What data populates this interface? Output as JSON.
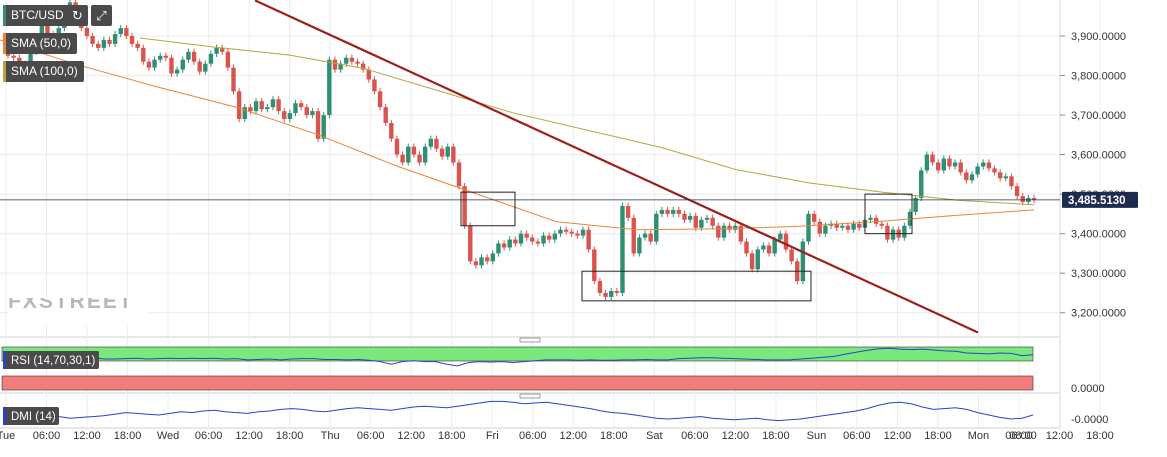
{
  "header": {
    "symbol": "BTC/USD",
    "indicators": [
      "SMA (50,0)",
      "SMA (100,0)"
    ],
    "refresh_icon": "refresh-icon",
    "fullscreen_icon": "expand-icon"
  },
  "watermark": "FXSTREET",
  "colors": {
    "bull": "#2f8f75",
    "bear": "#d9534f",
    "sma50": "#e8853a",
    "sma100": "#b5a642",
    "trend": "#9b1f1a",
    "rsi": "#2f3fc9",
    "rsi_upper": "#7be87b",
    "rsi_lower": "#f27d7d"
  },
  "chart_data": [
    {
      "type": "candlestick",
      "title": "BTC/USD",
      "x_tick_labels": [
        "Tue",
        "06:00",
        "12:00",
        "18:00",
        "Wed",
        "06:00",
        "12:00",
        "18:00",
        "Thu",
        "06:00",
        "12:00",
        "18:00",
        "Fri",
        "06:00",
        "12:00",
        "18:00",
        "Sat",
        "06:00",
        "12:00",
        "18:00",
        "Sun",
        "06:00",
        "12:00",
        "18:00",
        "Mon",
        "06:00",
        "12:00",
        "18:00",
        "08:00"
      ],
      "y_tick_labels": [
        "3,900.0000",
        "3,800.0000",
        "3,700.0000",
        "3,600.0000",
        "3,500.0000",
        "3,400.0000",
        "3,300.0000",
        "3,200.0000"
      ],
      "ylim": [
        3140,
        3990
      ],
      "current_price": 3485.513,
      "current_price_label": "3,485.5130",
      "series": [
        {
          "name": "BTC/USD",
          "close": [
            3850,
            3845,
            3830,
            3815,
            3860,
            3895,
            3950,
            3905,
            3890,
            3920,
            3960,
            3985,
            3945,
            3920,
            3900,
            3880,
            3870,
            3890,
            3880,
            3905,
            3920,
            3900,
            3880,
            3870,
            3835,
            3820,
            3840,
            3850,
            3845,
            3805,
            3815,
            3840,
            3860,
            3835,
            3810,
            3830,
            3855,
            3870,
            3860,
            3820,
            3760,
            3690,
            3720,
            3710,
            3735,
            3715,
            3720,
            3740,
            3710,
            3690,
            3705,
            3730,
            3720,
            3700,
            3710,
            3640,
            3700,
            3840,
            3815,
            3830,
            3845,
            3835,
            3830,
            3815,
            3790,
            3760,
            3720,
            3680,
            3640,
            3600,
            3580,
            3620,
            3600,
            3580,
            3620,
            3640,
            3615,
            3595,
            3620,
            3580,
            3520,
            3420,
            3330,
            3320,
            3340,
            3330,
            3350,
            3375,
            3365,
            3385,
            3375,
            3400,
            3390,
            3380,
            3375,
            3395,
            3385,
            3400,
            3410,
            3405,
            3400,
            3395,
            3410,
            3360,
            3280,
            3250,
            3240,
            3255,
            3250,
            3470,
            3440,
            3350,
            3390,
            3400,
            3380,
            3450,
            3460,
            3450,
            3460,
            3450,
            3435,
            3445,
            3415,
            3435,
            3440,
            3420,
            3390,
            3420,
            3410,
            3420,
            3380,
            3350,
            3310,
            3360,
            3370,
            3350,
            3385,
            3400,
            3360,
            3330,
            3280,
            3380,
            3450,
            3430,
            3400,
            3420,
            3425,
            3415,
            3420,
            3410,
            3425,
            3415,
            3435,
            3440,
            3425,
            3420,
            3385,
            3410,
            3390,
            3420,
            3455,
            3490,
            3560,
            3600,
            3580,
            3560,
            3590,
            3570,
            3580,
            3555,
            3535,
            3550,
            3570,
            3580,
            3565,
            3555,
            3540,
            3545,
            3520,
            3495,
            3480,
            3490,
            3485
          ]
        },
        {
          "name": "SMA (50,0)",
          "values": [
            3890,
            3826,
            3770,
            3718,
            3650,
            3570,
            3500,
            3430,
            3410,
            3412,
            3418,
            3430,
            3446,
            3460
          ]
        },
        {
          "name": "SMA (100,0)",
          "values": [
            3895,
            3872,
            3852,
            3818,
            3762,
            3706,
            3662,
            3618,
            3562,
            3528,
            3504,
            3484,
            3473
          ]
        },
        {
          "name": "trend",
          "values": [
            3990,
            3150
          ]
        }
      ]
    },
    {
      "type": "line",
      "title": "RSI (14,70,30,1)",
      "y_tick_labels": [
        "0.0000"
      ],
      "series": [
        {
          "name": "RSI (14,70,30,1)",
          "values": [
            70,
            78,
            80,
            74,
            78,
            74,
            72,
            73,
            76,
            72,
            72,
            73,
            74,
            72,
            73,
            74,
            73,
            74,
            73,
            74,
            72,
            73,
            70,
            71,
            72,
            70,
            72,
            73,
            73,
            71,
            71,
            70,
            71,
            69,
            66,
            60,
            66,
            68,
            66,
            66,
            60,
            56,
            64,
            66,
            65,
            66,
            64,
            66,
            68,
            70,
            70,
            70,
            69,
            70,
            69,
            69,
            70,
            70,
            71,
            70,
            70,
            73,
            74,
            75,
            75,
            74,
            73,
            72,
            71,
            70,
            70,
            70,
            72,
            74,
            76,
            78,
            83,
            88,
            92,
            96,
            97,
            95,
            94,
            95,
            93,
            91,
            90,
            86,
            85,
            84,
            86,
            85,
            80,
            82
          ]
        }
      ]
    },
    {
      "type": "line",
      "title": "DMI (14)",
      "y_tick_labels": [
        "-0.0000"
      ],
      "series": [
        {
          "name": "DMI (14)",
          "values": [
            12,
            14,
            16,
            18,
            20,
            16,
            12,
            14,
            16,
            18,
            22,
            26,
            24,
            22,
            20,
            24,
            28,
            26,
            30,
            32,
            28,
            26,
            24,
            28,
            30,
            34,
            36,
            34,
            30,
            28,
            32,
            36,
            38,
            36,
            34,
            32,
            36,
            40,
            42,
            40,
            38,
            42,
            46,
            50,
            54,
            54,
            52,
            48,
            50,
            52,
            48,
            44,
            40,
            36,
            30,
            26,
            24,
            20,
            16,
            12,
            10,
            12,
            14,
            16,
            12,
            10,
            8,
            10,
            12,
            8,
            6,
            8,
            10,
            14,
            18,
            22,
            26,
            30,
            36,
            44,
            50,
            52,
            48,
            40,
            34,
            36,
            38,
            34,
            26,
            20,
            14,
            10,
            12,
            20
          ]
        }
      ]
    }
  ]
}
